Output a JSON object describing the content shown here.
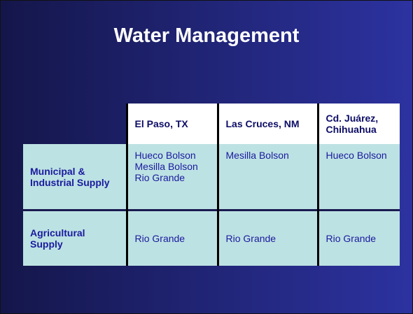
{
  "header": {
    "title": "Water Management"
  },
  "table": {
    "columns": [
      "El Paso, TX",
      "Las Cruces, NM",
      "Cd. Juárez, Chihuahua"
    ],
    "rows": [
      {
        "label": "Municipal & Industrial Supply",
        "cells": [
          [
            "Hueco Bolson",
            "Mesilla Bolson",
            "Rio Grande"
          ],
          [
            "Mesilla Bolson"
          ],
          [
            "Hueco Bolson"
          ]
        ]
      },
      {
        "label": "Agricultural Supply",
        "cells": [
          [
            "Rio Grande"
          ],
          [
            "Rio Grande"
          ],
          [
            "Rio Grande"
          ]
        ]
      }
    ]
  }
}
